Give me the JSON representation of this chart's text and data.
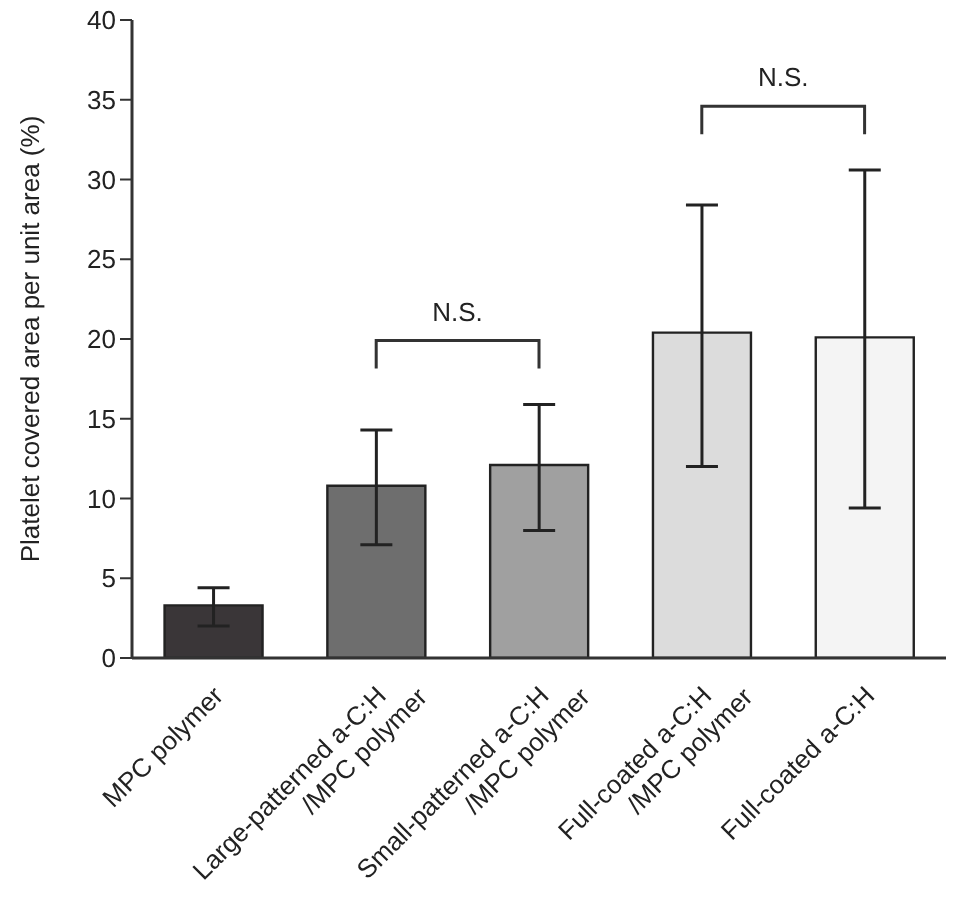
{
  "chart_data": {
    "type": "bar",
    "ylabel": "Platelet covered area per unit area (%)",
    "categories": [
      "MPC polymer",
      "Large-patterned a-C:H\n/MPC polymer",
      "Small-patterned a-C:H\n/MPC polymer",
      "Full-coated a-C:H\n/MPC polymer",
      "Full-coated a-C:H"
    ],
    "values": [
      3.3,
      10.8,
      12.1,
      20.4,
      20.1
    ],
    "colors": [
      "#3a3638",
      "#6e6e6e",
      "#a0a0a0",
      "#dcdcdc",
      "#f4f4f4"
    ],
    "errors": [
      [
        2.0,
        4.4
      ],
      [
        7.1,
        14.3
      ],
      [
        8.0,
        15.9
      ],
      [
        12.0,
        28.4
      ],
      [
        9.4,
        30.6
      ]
    ],
    "ylim": [
      0,
      40
    ],
    "yticks": [
      0,
      5,
      10,
      15,
      20,
      25,
      30,
      35,
      40
    ],
    "annotations": [
      "N.S.",
      "N.S."
    ]
  }
}
